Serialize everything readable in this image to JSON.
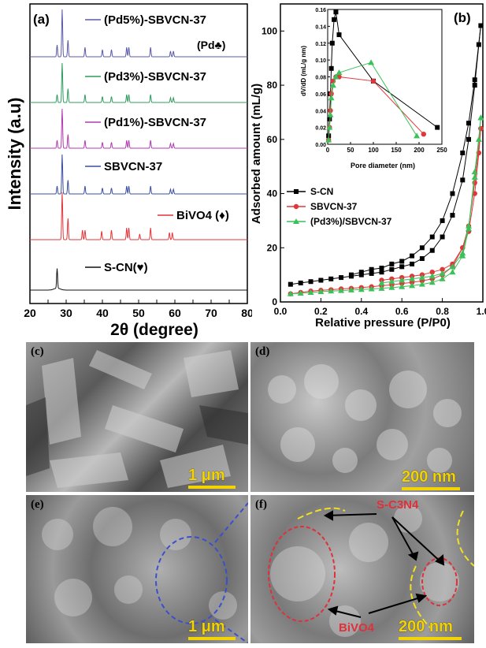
{
  "figure": {
    "panel_a": {
      "label": "(a)",
      "ylabel": "Intensity (a.u)",
      "xlabel": "2θ (degree)",
      "legend": [
        {
          "name": "(Pd5%)-SBVCN-37",
          "color": "#5a5aaa"
        },
        {
          "name": "(Pd3%)-SBVCN-37",
          "color": "#2e9c5c"
        },
        {
          "name": "(Pd1%)-SBVCN-37",
          "color": "#b13ab1"
        },
        {
          "name": "SBVCN-37",
          "color": "#3b4fa0"
        },
        {
          "name": "BiVO4 (♦)",
          "color": "#e1363a"
        },
        {
          "name": "S-CN(♥)",
          "color": "#111111"
        }
      ],
      "pd_marker_label": "(Pd♣)"
    },
    "panel_b": {
      "label": "(b)",
      "ylabel": "Adsorbed amount (mL/g)",
      "xlabel": "Relative pressure (P/P0)",
      "inset_xlabel": "Pore diameter (nm)",
      "inset_ylabel": "dV/dD (mL/g nm)"
    },
    "sem_panels": [
      {
        "label": "(c)",
        "scale": "1 μm"
      },
      {
        "label": "(d)",
        "scale": "200 nm"
      },
      {
        "label": "(e)",
        "scale": "1 μm"
      },
      {
        "label": "(f)",
        "scale": "200 nm",
        "annotations": [
          "S-C3N4",
          "BiVO4"
        ]
      }
    ]
  },
  "chart_data": [
    {
      "type": "line",
      "title": "",
      "xlabel": "2θ (degree)",
      "ylabel": "Intensity (a.u)",
      "xlim": [
        20,
        80
      ],
      "xticks": [
        20,
        25,
        30,
        35,
        40,
        45,
        50,
        55,
        60,
        65,
        70,
        75,
        80
      ],
      "series": [
        {
          "name": "(Pd5%)-SBVCN-37",
          "color": "#5a5aaa",
          "peaks": [
            [
              27.5,
              0.25
            ],
            [
              28.9,
              1.0
            ],
            [
              30.5,
              0.35
            ],
            [
              35.2,
              0.2
            ],
            [
              40.0,
              0.15
            ],
            [
              42.5,
              0.15
            ],
            [
              46.7,
              0.2
            ],
            [
              47.3,
              0.2
            ],
            [
              53.3,
              0.2
            ],
            [
              58.8,
              0.12
            ],
            [
              59.6,
              0.12
            ]
          ]
        },
        {
          "name": "(Pd3%)-SBVCN-37",
          "color": "#2e9c5c",
          "peaks": [
            [
              27.5,
              0.2
            ],
            [
              28.9,
              1.0
            ],
            [
              30.5,
              0.35
            ],
            [
              35.2,
              0.2
            ],
            [
              40.0,
              0.15
            ],
            [
              42.5,
              0.15
            ],
            [
              46.7,
              0.2
            ],
            [
              47.3,
              0.2
            ],
            [
              53.3,
              0.2
            ],
            [
              58.8,
              0.12
            ],
            [
              59.6,
              0.12
            ]
          ]
        },
        {
          "name": "(Pd1%)-SBVCN-37",
          "color": "#b13ab1",
          "peaks": [
            [
              27.5,
              0.2
            ],
            [
              28.9,
              1.0
            ],
            [
              30.5,
              0.35
            ],
            [
              35.2,
              0.2
            ],
            [
              40.0,
              0.15
            ],
            [
              42.5,
              0.15
            ],
            [
              46.7,
              0.2
            ],
            [
              47.3,
              0.2
            ],
            [
              53.3,
              0.2
            ],
            [
              58.8,
              0.12
            ],
            [
              59.6,
              0.12
            ]
          ]
        },
        {
          "name": "SBVCN-37",
          "color": "#3b4fa0",
          "peaks": [
            [
              27.5,
              0.2
            ],
            [
              28.9,
              1.0
            ],
            [
              30.5,
              0.35
            ],
            [
              35.2,
              0.2
            ],
            [
              40.0,
              0.15
            ],
            [
              42.5,
              0.15
            ],
            [
              46.7,
              0.2
            ],
            [
              47.3,
              0.2
            ],
            [
              53.3,
              0.2
            ],
            [
              58.8,
              0.12
            ],
            [
              59.6,
              0.12
            ]
          ]
        },
        {
          "name": "BiVO4 (♦)",
          "color": "#e1363a",
          "peaks": [
            [
              18.9,
              0.1
            ],
            [
              28.9,
              1.0
            ],
            [
              30.5,
              0.45
            ],
            [
              34.5,
              0.2
            ],
            [
              35.2,
              0.2
            ],
            [
              39.8,
              0.18
            ],
            [
              42.5,
              0.2
            ],
            [
              46.7,
              0.25
            ],
            [
              47.3,
              0.25
            ],
            [
              50.3,
              0.12
            ],
            [
              53.3,
              0.25
            ],
            [
              58.5,
              0.15
            ],
            [
              59.3,
              0.15
            ]
          ]
        },
        {
          "name": "S-CN(♥)",
          "color": "#111111",
          "peaks": [
            [
              13.0,
              0.1
            ],
            [
              27.5,
              1.0
            ]
          ]
        }
      ]
    },
    {
      "type": "line",
      "title": "",
      "xlabel": "Relative pressure (P/P0)",
      "ylabel": "Adsorbed amount (mL/g)",
      "xlim": [
        0.0,
        1.0
      ],
      "ylim": [
        0,
        110
      ],
      "xticks": [
        0.0,
        0.2,
        0.4,
        0.6,
        0.8,
        1.0
      ],
      "yticks": [
        0,
        20,
        40,
        60,
        80,
        100
      ],
      "legend": "lower-left",
      "series": [
        {
          "name": "S-CN",
          "color": "#000000",
          "marker": "square",
          "adsorption": [
            [
              0.05,
              6.5
            ],
            [
              0.1,
              7
            ],
            [
              0.15,
              7.5
            ],
            [
              0.2,
              8
            ],
            [
              0.25,
              8.5
            ],
            [
              0.3,
              9
            ],
            [
              0.35,
              9.5
            ],
            [
              0.4,
              10
            ],
            [
              0.45,
              10.5
            ],
            [
              0.5,
              11
            ],
            [
              0.55,
              12
            ],
            [
              0.6,
              13
            ],
            [
              0.65,
              14
            ],
            [
              0.7,
              16
            ],
            [
              0.75,
              19
            ],
            [
              0.8,
              24
            ],
            [
              0.85,
              32
            ],
            [
              0.9,
              45
            ],
            [
              0.93,
              60
            ],
            [
              0.96,
              80
            ],
            [
              0.98,
              95
            ],
            [
              0.99,
              102
            ]
          ],
          "desorption": [
            [
              0.99,
              102
            ],
            [
              0.96,
              82
            ],
            [
              0.93,
              66
            ],
            [
              0.9,
              55
            ],
            [
              0.85,
              40
            ],
            [
              0.8,
              30
            ],
            [
              0.75,
              24
            ],
            [
              0.7,
              20
            ],
            [
              0.65,
              17
            ],
            [
              0.6,
              15
            ],
            [
              0.55,
              14
            ],
            [
              0.5,
              12.5
            ],
            [
              0.45,
              12
            ],
            [
              0.4,
              11
            ],
            [
              0.35,
              10
            ]
          ]
        },
        {
          "name": "SBVCN-37",
          "color": "#e1363a",
          "marker": "circle",
          "adsorption": [
            [
              0.05,
              3
            ],
            [
              0.1,
              3.5
            ],
            [
              0.15,
              4
            ],
            [
              0.2,
              4.3
            ],
            [
              0.25,
              4.5
            ],
            [
              0.3,
              4.8
            ],
            [
              0.35,
              5
            ],
            [
              0.4,
              5.3
            ],
            [
              0.45,
              5.6
            ],
            [
              0.5,
              6
            ],
            [
              0.55,
              6.3
            ],
            [
              0.6,
              6.8
            ],
            [
              0.65,
              7.2
            ],
            [
              0.7,
              7.8
            ],
            [
              0.75,
              8.5
            ],
            [
              0.8,
              10
            ],
            [
              0.85,
              13
            ],
            [
              0.9,
              20
            ],
            [
              0.93,
              26
            ],
            [
              0.96,
              40
            ],
            [
              0.98,
              55
            ],
            [
              0.99,
              64
            ]
          ],
          "desorption": [
            [
              0.99,
              64
            ],
            [
              0.96,
              44
            ],
            [
              0.93,
              28
            ],
            [
              0.9,
              20
            ],
            [
              0.85,
              14
            ],
            [
              0.8,
              12
            ],
            [
              0.75,
              11
            ],
            [
              0.7,
              10
            ],
            [
              0.65,
              9.5
            ],
            [
              0.6,
              9
            ],
            [
              0.55,
              8.5
            ],
            [
              0.5,
              8
            ]
          ]
        },
        {
          "name": "(Pd3%)/SBVCN-37",
          "color": "#3cc15a",
          "marker": "triangle",
          "adsorption": [
            [
              0.05,
              3
            ],
            [
              0.1,
              3.2
            ],
            [
              0.15,
              3.5
            ],
            [
              0.2,
              3.8
            ],
            [
              0.25,
              4
            ],
            [
              0.3,
              4.2
            ],
            [
              0.35,
              4.4
            ],
            [
              0.4,
              4.6
            ],
            [
              0.45,
              4.8
            ],
            [
              0.5,
              5
            ],
            [
              0.55,
              5.3
            ],
            [
              0.6,
              5.6
            ],
            [
              0.65,
              6
            ],
            [
              0.7,
              6.5
            ],
            [
              0.75,
              7.2
            ],
            [
              0.8,
              8.5
            ],
            [
              0.85,
              11
            ],
            [
              0.9,
              17
            ],
            [
              0.93,
              27
            ],
            [
              0.96,
              48
            ],
            [
              0.98,
              60
            ],
            [
              0.99,
              68
            ]
          ],
          "desorption": [
            [
              0.99,
              68
            ],
            [
              0.96,
              46
            ],
            [
              0.93,
              28
            ],
            [
              0.9,
              18
            ],
            [
              0.85,
              13
            ],
            [
              0.8,
              10.5
            ],
            [
              0.75,
              9.5
            ],
            [
              0.7,
              9
            ],
            [
              0.65,
              8.5
            ],
            [
              0.6,
              8
            ],
            [
              0.55,
              7.5
            ],
            [
              0.5,
              7
            ]
          ]
        }
      ]
    },
    {
      "type": "line",
      "title": "",
      "xlabel": "Pore diameter (nm)",
      "ylabel": "dV/dD (mL/g nm)",
      "xlim": [
        0,
        250
      ],
      "ylim": [
        0,
        0.16
      ],
      "xticks": [
        0,
        50,
        100,
        150,
        200,
        250
      ],
      "yticks": [
        0.0,
        0.02,
        0.04,
        0.06,
        0.08,
        0.1,
        0.12,
        0.14,
        0.16
      ],
      "series": [
        {
          "name": "S-CN",
          "color": "#000000",
          "marker": "square",
          "points": [
            [
              2,
              0.01
            ],
            [
              4,
              0.03
            ],
            [
              6,
              0.06
            ],
            [
              8,
              0.09
            ],
            [
              10,
              0.12
            ],
            [
              14,
              0.148
            ],
            [
              18,
              0.157
            ],
            [
              25,
              0.13
            ],
            [
              100,
              0.075
            ],
            [
              240,
              0.02
            ]
          ]
        },
        {
          "name": "SBVCN-37",
          "color": "#e1363a",
          "marker": "circle",
          "points": [
            [
              2,
              0.005
            ],
            [
              4,
              0.02
            ],
            [
              6,
              0.04
            ],
            [
              8,
              0.06
            ],
            [
              12,
              0.075
            ],
            [
              18,
              0.08
            ],
            [
              25,
              0.08
            ],
            [
              100,
              0.075
            ],
            [
              210,
              0.012
            ]
          ]
        },
        {
          "name": "(Pd3%)/SBVCN-37",
          "color": "#3cc15a",
          "marker": "triangle",
          "points": [
            [
              2,
              0.005
            ],
            [
              4,
              0.02
            ],
            [
              6,
              0.035
            ],
            [
              8,
              0.055
            ],
            [
              12,
              0.07
            ],
            [
              18,
              0.08
            ],
            [
              25,
              0.085
            ],
            [
              95,
              0.097
            ],
            [
              195,
              0.01
            ]
          ]
        }
      ]
    }
  ]
}
